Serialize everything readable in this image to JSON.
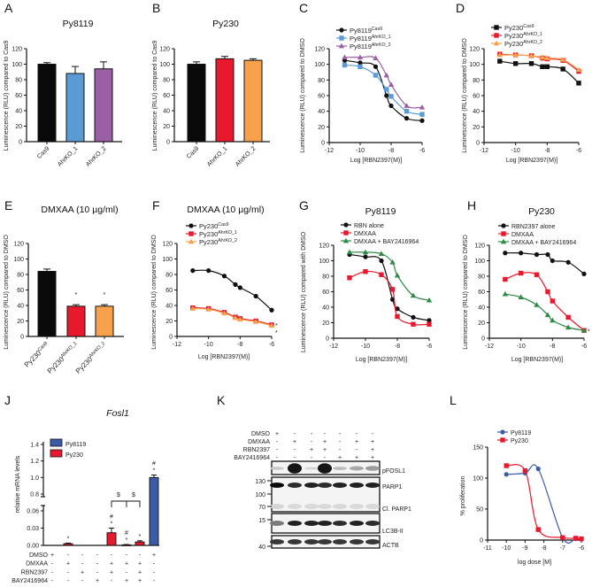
{
  "colors": {
    "black": "#111111",
    "blue": "#5b9bd5",
    "purple": "#9b5fa6",
    "red": "#e8192c",
    "orange": "#f7a14d",
    "green": "#2e8b45",
    "darkblue": "#3a5ba8"
  },
  "chart_data": [
    {
      "id": "A",
      "panel_label": "A",
      "type": "bar",
      "title": "Py8119",
      "ylabel": "Luminescence (RLU) compared to Cas9",
      "ylim": [
        0,
        120
      ],
      "yticks": [
        0,
        20,
        40,
        60,
        80,
        100,
        120
      ],
      "categories": [
        "Cas9",
        "AhrKO_1",
        "AhrKO_2"
      ],
      "values": [
        100,
        88,
        94
      ],
      "errors": [
        2,
        9,
        9
      ],
      "bar_colors": [
        "#0a0a0a",
        "#5b9bd5",
        "#9b5fa6"
      ]
    },
    {
      "id": "B",
      "panel_label": "B",
      "type": "bar",
      "title": "Py230",
      "ylabel": "Luminescence (RLU) compared to Cas9",
      "ylim": [
        0,
        120
      ],
      "yticks": [
        0,
        20,
        40,
        60,
        80,
        100,
        120
      ],
      "categories": [
        "Cas9",
        "AhrKO_1",
        "AhrKO_2"
      ],
      "values": [
        100,
        107,
        105
      ],
      "errors": [
        3,
        3,
        2
      ],
      "bar_colors": [
        "#0a0a0a",
        "#e8192c",
        "#f7a14d"
      ]
    },
    {
      "id": "C",
      "panel_label": "C",
      "type": "line",
      "title": "",
      "xlabel": "Log [RBN2397(M)]",
      "ylabel": "Luminescence (RLU) compared to DMSO",
      "xlim": [
        -12,
        -6
      ],
      "ylim": [
        0,
        120
      ],
      "xticks": [
        -12,
        -10,
        -8,
        -6
      ],
      "yticks": [
        0,
        20,
        40,
        60,
        80,
        100,
        120
      ],
      "x": [
        -11,
        -10,
        -9,
        -8.3,
        -8,
        -7,
        -6
      ],
      "series": [
        {
          "name": "Py8119",
          "sup": "Cas9",
          "color": "#111111",
          "marker": "circle",
          "values": [
            105,
            102,
            97,
            60,
            47,
            31,
            28
          ]
        },
        {
          "name": "Py8119",
          "sup": "AhrKO_1",
          "color": "#5b9bd5",
          "marker": "square",
          "values": [
            99,
            97,
            86,
            68,
            59,
            40,
            36
          ]
        },
        {
          "name": "Py8119",
          "sup": "AhrKO_2",
          "color": "#9b5fa6",
          "marker": "triangle",
          "values": [
            109,
            109,
            108,
            86,
            74,
            47,
            45
          ]
        }
      ]
    },
    {
      "id": "D",
      "panel_label": "D",
      "type": "line",
      "title": "",
      "xlabel": "Log [RBN2397(M)]",
      "ylabel": "Luminescence (RLU) compared to DMSO",
      "xlim": [
        -12,
        -6
      ],
      "ylim": [
        0,
        120
      ],
      "xticks": [
        -12,
        -10,
        -8,
        -6
      ],
      "yticks": [
        0,
        20,
        40,
        60,
        80,
        100,
        120
      ],
      "x": [
        -11,
        -10,
        -9,
        -8.3,
        -8,
        -7,
        -6
      ],
      "series": [
        {
          "name": "Py230",
          "sup": "Cas9",
          "color": "#111111",
          "marker": "square",
          "values": [
            104,
            101,
            101,
            97,
            97,
            94,
            76
          ]
        },
        {
          "name": "Py230",
          "sup": "AhrKO_1",
          "color": "#e8192c",
          "marker": "square",
          "values": [
            113,
            112,
            111,
            108,
            107,
            105,
            91
          ]
        },
        {
          "name": "Py230",
          "sup": "AhrKO_2",
          "color": "#f7a14d",
          "marker": "triangle",
          "values": [
            112,
            112,
            111,
            109,
            108,
            106,
            93
          ]
        }
      ]
    },
    {
      "id": "E",
      "panel_label": "E",
      "type": "bar",
      "title": "DMXAA (10 µg/ml)",
      "ylabel": "Luminescence (RLU) compared to DMSO",
      "ylim": [
        0,
        120
      ],
      "yticks": [
        0,
        20,
        40,
        60,
        80,
        100,
        120
      ],
      "categories": [
        "Py230",
        "Py230",
        "Py230"
      ],
      "category_sups": [
        "Cas9",
        "AhrKO_1",
        "AhrKO_2"
      ],
      "values": [
        84,
        39,
        39
      ],
      "errors": [
        3,
        2,
        2
      ],
      "annotations": [
        "",
        "*",
        "*"
      ],
      "bar_colors": [
        "#0a0a0a",
        "#e8192c",
        "#f7a14d"
      ]
    },
    {
      "id": "F",
      "panel_label": "F",
      "type": "line",
      "title": "DMXAA (10 µg/ml)",
      "xlabel": "Log [RBN2397(M)]",
      "ylabel": "Luminescence (RLU) compared to DMSO",
      "xlim": [
        -12,
        -6
      ],
      "ylim": [
        0,
        120
      ],
      "xticks": [
        -12,
        -10,
        -8,
        -6
      ],
      "yticks": [
        0,
        20,
        40,
        60,
        80,
        100,
        120
      ],
      "x": [
        -11,
        -10,
        -9,
        -8.3,
        -8,
        -7,
        -6
      ],
      "end_annotation": "*",
      "series": [
        {
          "name": "Py230",
          "sup": "Cas9",
          "color": "#111111",
          "marker": "circle",
          "values": [
            85,
            85,
            78,
            67,
            63,
            52,
            34
          ]
        },
        {
          "name": "Py230",
          "sup": "AhrKO_1",
          "color": "#e8192c",
          "marker": "square",
          "values": [
            37,
            36,
            31,
            25,
            23,
            20,
            15
          ]
        },
        {
          "name": "Py230",
          "sup": "AhrKO_2",
          "color": "#f7a14d",
          "marker": "triangle",
          "values": [
            36,
            35,
            30,
            24,
            22,
            19,
            14
          ]
        }
      ]
    },
    {
      "id": "G",
      "panel_label": "G",
      "type": "line",
      "title": "Py8119",
      "xlabel": "Log [RBN2397(M)]",
      "ylabel": "Luminescence (RLU) compared with DMSO",
      "xlim": [
        -12,
        -6
      ],
      "ylim": [
        0,
        120
      ],
      "xticks": [
        -12,
        -10,
        -8,
        -6
      ],
      "yticks": [
        0,
        20,
        40,
        60,
        80,
        100,
        120
      ],
      "x": [
        -11,
        -10,
        -9,
        -8.3,
        -8,
        -7,
        -6
      ],
      "series": [
        {
          "name": "RBN alone",
          "color": "#111111",
          "marker": "circle",
          "values": [
            108,
            105,
            100,
            50,
            38,
            27,
            23
          ]
        },
        {
          "name": "DMXAA",
          "color": "#e8192c",
          "marker": "square",
          "values": [
            78,
            86,
            82,
            63,
            28,
            18,
            18
          ]
        },
        {
          "name": "DMXAA + BAY2416964",
          "color": "#2e8b45",
          "marker": "triangle",
          "values": [
            111,
            111,
            109,
            98,
            81,
            55,
            49
          ]
        }
      ]
    },
    {
      "id": "H",
      "panel_label": "H",
      "type": "line",
      "title": "Py230",
      "xlabel": "Log [RBN2397(M)]",
      "ylabel": "Luminescence (RLU) compared to DMSO",
      "xlim": [
        -12,
        -6
      ],
      "ylim": [
        0,
        120
      ],
      "xticks": [
        -12,
        -10,
        -8,
        -6
      ],
      "yticks": [
        0,
        20,
        40,
        60,
        80,
        100,
        120
      ],
      "x": [
        -11,
        -10,
        -9,
        -8.3,
        -8,
        -7,
        -6
      ],
      "end_annotation": "*",
      "series": [
        {
          "name": "RBN2397 alone",
          "color": "#111111",
          "marker": "circle",
          "values": [
            110,
            110,
            108,
            108,
            100,
            98,
            83
          ]
        },
        {
          "name": "DMXAA",
          "color": "#e8192c",
          "marker": "square",
          "values": [
            76,
            84,
            82,
            60,
            48,
            27,
            10
          ]
        },
        {
          "name": "DMXAA + BAY2416964",
          "color": "#2e8b45",
          "marker": "triangle",
          "values": [
            57,
            53,
            43,
            30,
            23,
            14,
            10
          ]
        }
      ]
    },
    {
      "id": "J",
      "panel_label": "J",
      "type": "bar",
      "title": "Fosl1",
      "ylabel": "relative mRNA levels",
      "broken_axis": true,
      "yticks_lower": [
        "0.00",
        "0.03",
        "0.06"
      ],
      "yticks_upper": [
        "0.8",
        "1.0",
        "1.2",
        "1.4"
      ],
      "legend": [
        {
          "name": "Py8119",
          "color": "#3a5ba8"
        },
        {
          "name": "Py230",
          "color": "#e8192c"
        }
      ],
      "values": [
        0,
        0.003,
        0,
        0,
        0.022,
        0.001,
        0.006,
        1.0
      ],
      "errors": [
        0,
        0.001,
        0,
        0,
        0.008,
        0.0005,
        0.002,
        0.03
      ],
      "bar_series": [
        "Py230",
        "Py230",
        "Py230",
        "Py230",
        "Py230",
        "Py230",
        "Py230",
        "Py8119"
      ],
      "annotations": [
        [],
        [
          "*"
        ],
        [],
        [],
        [
          "#",
          "*"
        ],
        [
          "#",
          "*"
        ],
        [
          "*"
        ],
        [
          "#",
          "*"
        ]
      ],
      "brackets": [
        "$",
        "$"
      ],
      "treatments": [
        {
          "name": "DMSO",
          "marks": [
            "+",
            "-",
            "-",
            "-",
            "-",
            "-",
            "-",
            "+"
          ]
        },
        {
          "name": "DMXAA",
          "marks": [
            "-",
            "+",
            "-",
            "-",
            "+",
            "+",
            "+",
            "-"
          ]
        },
        {
          "name": "RBN2397",
          "marks": [
            "-",
            "-",
            "+",
            "-",
            "+",
            "-",
            "+",
            "-"
          ]
        },
        {
          "name": "BAY2416964",
          "marks": [
            "-",
            "-",
            "-",
            "+",
            "-",
            "+",
            "+",
            "-"
          ]
        }
      ]
    },
    {
      "id": "K",
      "panel_label": "K",
      "type": "blot",
      "treatments": [
        {
          "name": "DMSO",
          "marks": [
            "+",
            "-",
            "-",
            "-",
            "-",
            "-",
            "-"
          ]
        },
        {
          "name": "DMXAA",
          "marks": [
            "-",
            "+",
            "-",
            "+",
            "-",
            "+",
            "+"
          ]
        },
        {
          "name": "RBN2397",
          "marks": [
            "-",
            "-",
            "+",
            "+",
            "-",
            "-",
            "+"
          ]
        },
        {
          "name": "BAY2416964",
          "marks": [
            "-",
            "-",
            "-",
            "-",
            "+",
            "+",
            "+"
          ]
        }
      ],
      "markers": [
        "130",
        "100",
        "70",
        "15",
        "40"
      ],
      "bands": [
        {
          "name": "pFOSL1",
          "intensity": [
            0.15,
            0.95,
            0.1,
            0.95,
            0.2,
            0.3,
            0.35
          ]
        },
        {
          "name": "PARP1",
          "intensity": [
            1,
            0.85,
            0.9,
            0.85,
            0.9,
            0.9,
            0.9
          ]
        },
        {
          "name": "Cl. PARP1",
          "intensity": [
            0.1,
            0.08,
            0.08,
            0.08,
            0.08,
            0.08,
            0.08
          ]
        },
        {
          "name": "LC3B-II",
          "intensity": [
            0.5,
            0.9,
            0.9,
            0.9,
            0.85,
            0.9,
            0.85
          ]
        },
        {
          "name": "ACTB",
          "intensity": [
            0.8,
            0.8,
            0.8,
            0.8,
            0.8,
            0.8,
            0.8
          ]
        }
      ]
    },
    {
      "id": "L",
      "panel_label": "L",
      "type": "line",
      "title": "",
      "xlabel": "log dose [M]",
      "ylabel": "% proliferation",
      "xlim": [
        -11,
        -6
      ],
      "ylim": [
        0,
        150
      ],
      "xticks": [
        -11,
        -10,
        -9,
        -8,
        -7,
        -6
      ],
      "yticks": [
        0,
        50,
        100,
        150
      ],
      "x": [
        -10,
        -9,
        -8.3,
        -7,
        -6.3,
        -6
      ],
      "series": [
        {
          "name": "Py8119",
          "color": "#3a5ba8",
          "marker": "circle",
          "values": [
            106,
            108,
            115,
            4,
            2,
            2
          ]
        },
        {
          "name": "Py230",
          "color": "#e8192c",
          "marker": "square",
          "values": [
            120,
            112,
            17,
            4,
            3,
            2
          ]
        }
      ]
    }
  ]
}
